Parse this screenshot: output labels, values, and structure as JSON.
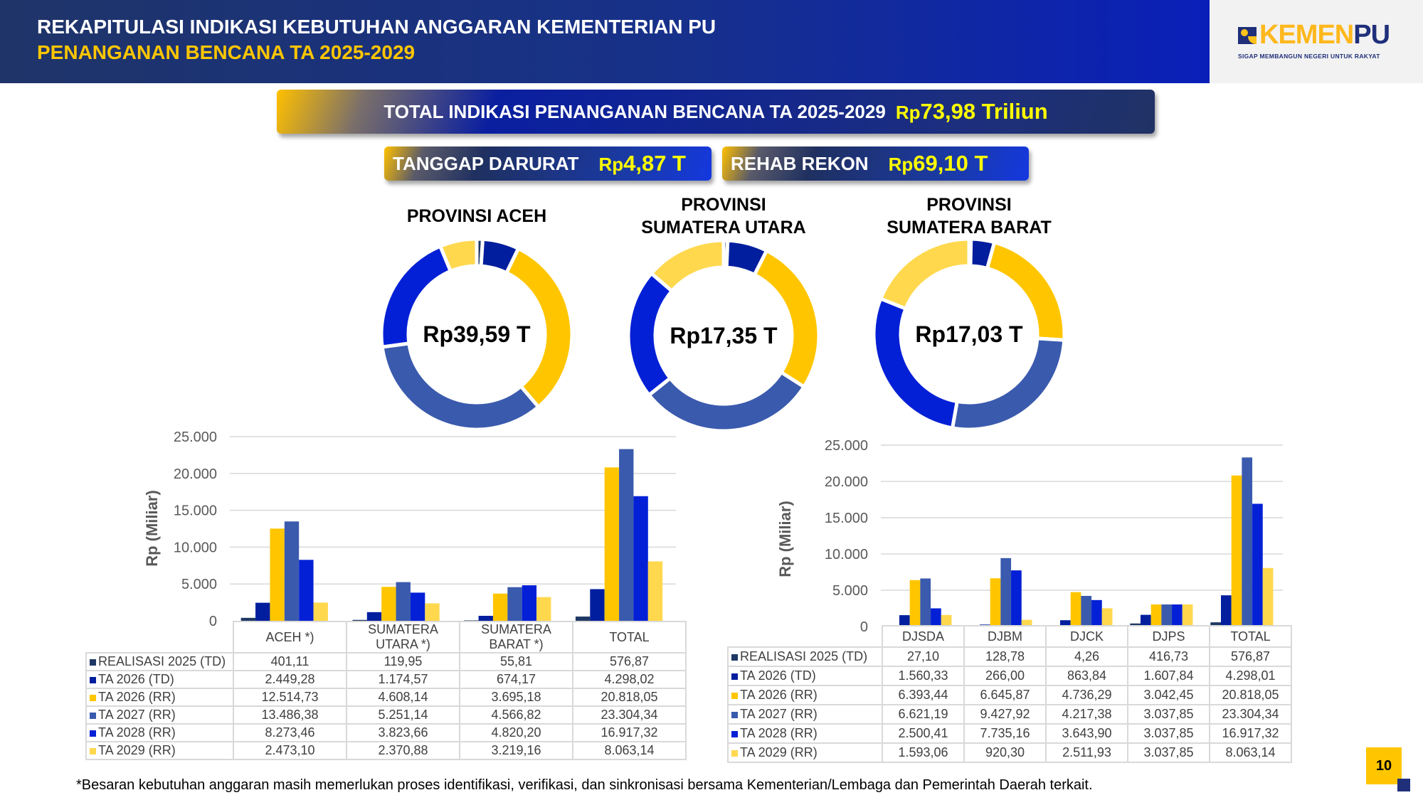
{
  "header": {
    "title_line1": "REKAPITULASI INDIKASI KEBUTUHAN ANGGARAN KEMENTERIAN PU",
    "title_line2": "PENANGANAN BENCANA TA 2025-2029"
  },
  "logo": {
    "text_a": "KEMEN",
    "text_b": "PU",
    "tagline": "SIGAP MEMBANGUN NEGERI UNTUK RAKYAT"
  },
  "summary": {
    "total_label": "TOTAL INDIKASI PENANGANAN BENCANA TA 2025-2029",
    "total_prefix": "Rp",
    "total_value": "73,98 Triliun",
    "td_label": "TANGGAP DARURAT",
    "td_prefix": "Rp",
    "td_value": "4,87 T",
    "rr_label": "REHAB REKON",
    "rr_prefix": "Rp",
    "rr_value": "69,10 T"
  },
  "colors": {
    "series": [
      "#1f3864",
      "#001e9e",
      "#ffc600",
      "#3a5aad",
      "#0420d6",
      "#ffd84e"
    ]
  },
  "series_names": [
    "REALISASI 2025 (TD)",
    "TA 2026 (TD)",
    "TA 2026 (RR)",
    "TA 2027 (RR)",
    "TA 2028 (RR)",
    "TA 2029 (RR)"
  ],
  "chart_data": [
    {
      "type": "pie",
      "variant": "donut",
      "title": "PROVINSI ACEH",
      "center_label": "Rp39,59 T",
      "values": [
        401.11,
        2449.28,
        12514.73,
        13486.38,
        8273.46,
        2473.1
      ]
    },
    {
      "type": "pie",
      "variant": "donut",
      "title_line1": "PROVINSI",
      "title_line2": "SUMATERA UTARA",
      "center_label": "Rp17,35 T",
      "values": [
        119.95,
        1174.57,
        4608.14,
        5251.14,
        3823.66,
        2370.88
      ]
    },
    {
      "type": "pie",
      "variant": "donut",
      "title_line1": "PROVINSI",
      "title_line2": "SUMATERA BARAT",
      "center_label": "Rp17,03 T",
      "values": [
        55.81,
        674.17,
        3695.18,
        4566.82,
        4820.2,
        3219.16
      ]
    },
    {
      "type": "bar",
      "ylabel": "Rp (Miliar)",
      "ylim": [
        0,
        25000
      ],
      "yticks": [
        "25.000",
        "20.000",
        "15.000",
        "10.000",
        "5.000",
        "0"
      ],
      "grid": true,
      "categories": [
        "ACEH *)",
        "SUMATERA UTARA *)",
        "SUMATERA BARAT *)",
        "TOTAL"
      ],
      "series": [
        {
          "name": "REALISASI 2025 (TD)",
          "values": [
            401.11,
            119.95,
            55.81,
            576.87
          ],
          "labels": [
            "401,11",
            "119,95",
            "55,81",
            "576,87"
          ]
        },
        {
          "name": "TA 2026 (TD)",
          "values": [
            2449.28,
            1174.57,
            674.17,
            4298.02
          ],
          "labels": [
            "2.449,28",
            "1.174,57",
            "674,17",
            "4.298,02"
          ]
        },
        {
          "name": "TA 2026 (RR)",
          "values": [
            12514.73,
            4608.14,
            3695.18,
            20818.05
          ],
          "labels": [
            "12.514,73",
            "4.608,14",
            "3.695,18",
            "20.818,05"
          ]
        },
        {
          "name": "TA 2027 (RR)",
          "values": [
            13486.38,
            5251.14,
            4566.82,
            23304.34
          ],
          "labels": [
            "13.486,38",
            "5.251,14",
            "4.566,82",
            "23.304,34"
          ]
        },
        {
          "name": "TA 2028 (RR)",
          "values": [
            8273.46,
            3823.66,
            4820.2,
            16917.32
          ],
          "labels": [
            "8.273,46",
            "3.823,66",
            "4.820,20",
            "16.917,32"
          ]
        },
        {
          "name": "TA 2029 (RR)",
          "values": [
            2473.1,
            2370.88,
            3219.16,
            8063.14
          ],
          "labels": [
            "2.473,10",
            "2.370,88",
            "3.219,16",
            "8.063,14"
          ]
        }
      ]
    },
    {
      "type": "bar",
      "ylabel": "Rp (Miliar)",
      "ylim": [
        0,
        25000
      ],
      "yticks": [
        "25.000",
        "20.000",
        "15.000",
        "10.000",
        "5.000",
        "0"
      ],
      "grid": true,
      "categories": [
        "DJSDA",
        "DJBM",
        "DJCK",
        "DJPS",
        "TOTAL"
      ],
      "series": [
        {
          "name": "REALISASI 2025 (TD)",
          "values": [
            27.1,
            128.78,
            4.26,
            416.73,
            576.87
          ],
          "labels": [
            "27,10",
            "128,78",
            "4,26",
            "416,73",
            "576,87"
          ]
        },
        {
          "name": "TA 2026 (TD)",
          "values": [
            1560.33,
            266.0,
            863.84,
            1607.84,
            4298.01
          ],
          "labels": [
            "1.560,33",
            "266,00",
            "863,84",
            "1.607,84",
            "4.298,01"
          ]
        },
        {
          "name": "TA 2026 (RR)",
          "values": [
            6393.44,
            6645.87,
            4736.29,
            3042.45,
            20818.05
          ],
          "labels": [
            "6.393,44",
            "6.645,87",
            "4.736,29",
            "3.042,45",
            "20.818,05"
          ]
        },
        {
          "name": "TA 2027 (RR)",
          "values": [
            6621.19,
            9427.92,
            4217.38,
            3037.85,
            23304.34
          ],
          "labels": [
            "6.621,19",
            "9.427,92",
            "4.217,38",
            "3.037,85",
            "23.304,34"
          ]
        },
        {
          "name": "TA 2028 (RR)",
          "values": [
            2500.41,
            7735.16,
            3643.9,
            3037.85,
            16917.32
          ],
          "labels": [
            "2.500,41",
            "7.735,16",
            "3.643,90",
            "3.037,85",
            "16.917,32"
          ]
        },
        {
          "name": "TA 2029 (RR)",
          "values": [
            1593.06,
            920.3,
            2511.93,
            3037.85,
            8063.14
          ],
          "labels": [
            "1.593,06",
            "920,30",
            "2.511,93",
            "3.037,85",
            "8.063,14"
          ]
        }
      ]
    }
  ],
  "footnote": "*Besaran kebutuhan anggaran masih memerlukan proses identifikasi, verifikasi, dan sinkronisasi bersama Kementerian/Lembaga dan Pemerintah Daerah terkait.",
  "page_number": "10"
}
